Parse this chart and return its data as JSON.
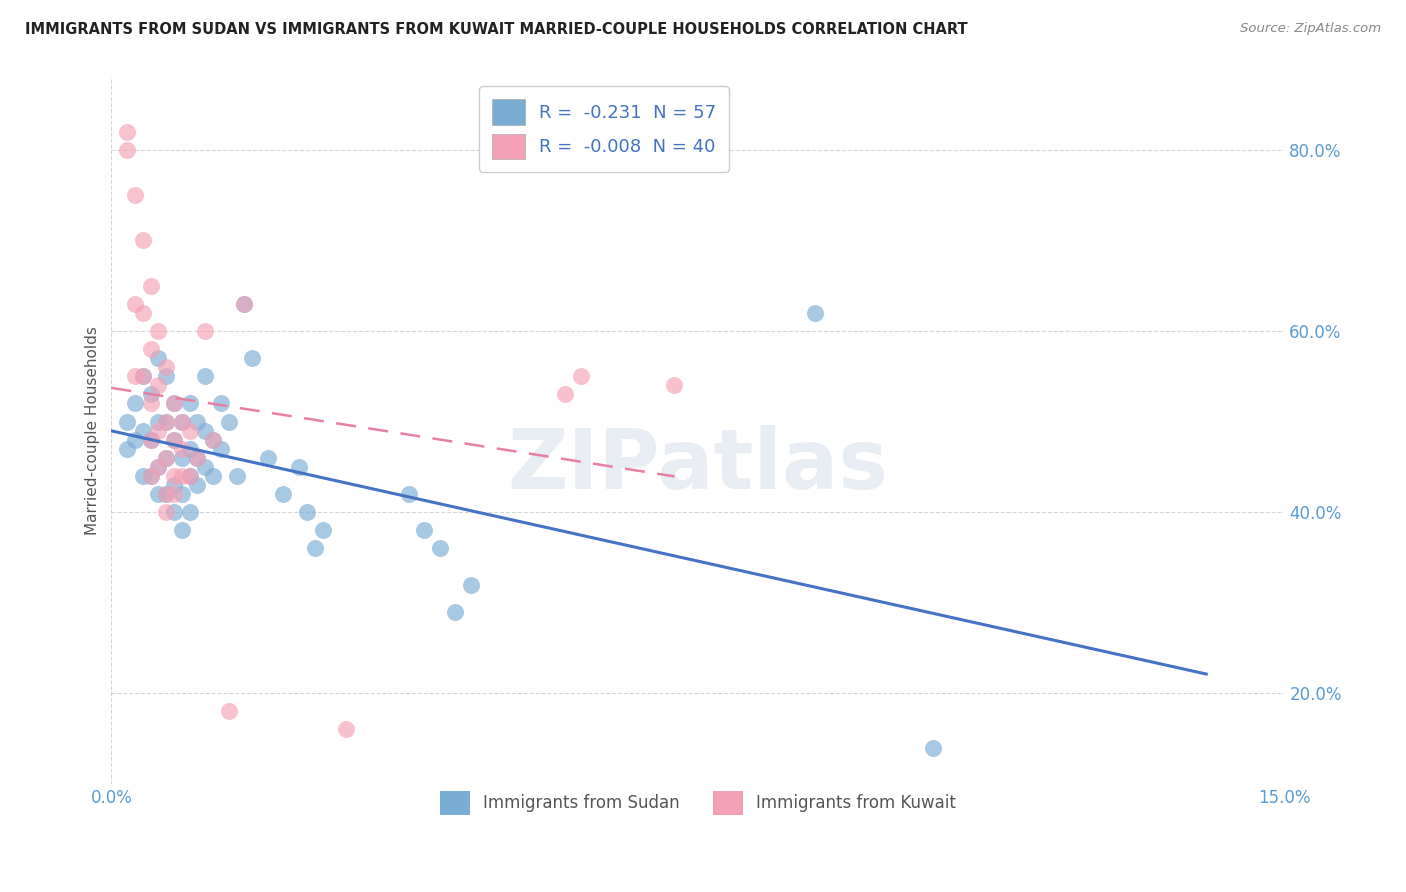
{
  "title": "IMMIGRANTS FROM SUDAN VS IMMIGRANTS FROM KUWAIT MARRIED-COUPLE HOUSEHOLDS CORRELATION CHART",
  "source": "Source: ZipAtlas.com",
  "xlim": [
    0.0,
    0.15
  ],
  "ylim": [
    0.1,
    0.88
  ],
  "ylabel": "Married-couple Households",
  "legend1_label": "Immigrants from Sudan",
  "legend2_label": "Immigrants from Kuwait",
  "r1": -0.231,
  "n1": 57,
  "r2": -0.008,
  "n2": 40,
  "color_sudan": "#7aadd4",
  "color_kuwait": "#f4a0b5",
  "color_sudan_line": "#4472c4",
  "color_kuwait_line": "#e97fa0",
  "watermark": "ZIPatlas",
  "sudan_points": [
    [
      0.002,
      0.5
    ],
    [
      0.002,
      0.47
    ],
    [
      0.003,
      0.52
    ],
    [
      0.003,
      0.48
    ],
    [
      0.004,
      0.55
    ],
    [
      0.004,
      0.49
    ],
    [
      0.004,
      0.44
    ],
    [
      0.005,
      0.53
    ],
    [
      0.005,
      0.48
    ],
    [
      0.005,
      0.44
    ],
    [
      0.006,
      0.57
    ],
    [
      0.006,
      0.5
    ],
    [
      0.006,
      0.45
    ],
    [
      0.006,
      0.42
    ],
    [
      0.007,
      0.55
    ],
    [
      0.007,
      0.5
    ],
    [
      0.007,
      0.46
    ],
    [
      0.007,
      0.42
    ],
    [
      0.008,
      0.52
    ],
    [
      0.008,
      0.48
    ],
    [
      0.008,
      0.43
    ],
    [
      0.008,
      0.4
    ],
    [
      0.009,
      0.5
    ],
    [
      0.009,
      0.46
    ],
    [
      0.009,
      0.42
    ],
    [
      0.009,
      0.38
    ],
    [
      0.01,
      0.52
    ],
    [
      0.01,
      0.47
    ],
    [
      0.01,
      0.44
    ],
    [
      0.01,
      0.4
    ],
    [
      0.011,
      0.5
    ],
    [
      0.011,
      0.46
    ],
    [
      0.011,
      0.43
    ],
    [
      0.012,
      0.55
    ],
    [
      0.012,
      0.49
    ],
    [
      0.012,
      0.45
    ],
    [
      0.013,
      0.48
    ],
    [
      0.013,
      0.44
    ],
    [
      0.014,
      0.52
    ],
    [
      0.014,
      0.47
    ],
    [
      0.015,
      0.5
    ],
    [
      0.016,
      0.44
    ],
    [
      0.017,
      0.63
    ],
    [
      0.018,
      0.57
    ],
    [
      0.02,
      0.46
    ],
    [
      0.022,
      0.42
    ],
    [
      0.024,
      0.45
    ],
    [
      0.025,
      0.4
    ],
    [
      0.026,
      0.36
    ],
    [
      0.027,
      0.38
    ],
    [
      0.038,
      0.42
    ],
    [
      0.04,
      0.38
    ],
    [
      0.042,
      0.36
    ],
    [
      0.044,
      0.29
    ],
    [
      0.046,
      0.32
    ],
    [
      0.09,
      0.62
    ],
    [
      0.105,
      0.14
    ]
  ],
  "kuwait_points": [
    [
      0.002,
      0.82
    ],
    [
      0.002,
      0.8
    ],
    [
      0.003,
      0.75
    ],
    [
      0.003,
      0.63
    ],
    [
      0.003,
      0.55
    ],
    [
      0.004,
      0.7
    ],
    [
      0.004,
      0.62
    ],
    [
      0.004,
      0.55
    ],
    [
      0.005,
      0.65
    ],
    [
      0.005,
      0.58
    ],
    [
      0.005,
      0.52
    ],
    [
      0.005,
      0.48
    ],
    [
      0.005,
      0.44
    ],
    [
      0.006,
      0.6
    ],
    [
      0.006,
      0.54
    ],
    [
      0.006,
      0.49
    ],
    [
      0.006,
      0.45
    ],
    [
      0.007,
      0.56
    ],
    [
      0.007,
      0.5
    ],
    [
      0.007,
      0.46
    ],
    [
      0.007,
      0.42
    ],
    [
      0.007,
      0.4
    ],
    [
      0.008,
      0.52
    ],
    [
      0.008,
      0.48
    ],
    [
      0.008,
      0.44
    ],
    [
      0.008,
      0.42
    ],
    [
      0.009,
      0.5
    ],
    [
      0.009,
      0.47
    ],
    [
      0.009,
      0.44
    ],
    [
      0.01,
      0.49
    ],
    [
      0.01,
      0.44
    ],
    [
      0.011,
      0.46
    ],
    [
      0.012,
      0.6
    ],
    [
      0.013,
      0.48
    ],
    [
      0.015,
      0.18
    ],
    [
      0.017,
      0.63
    ],
    [
      0.03,
      0.16
    ],
    [
      0.058,
      0.53
    ],
    [
      0.06,
      0.55
    ],
    [
      0.072,
      0.54
    ]
  ]
}
